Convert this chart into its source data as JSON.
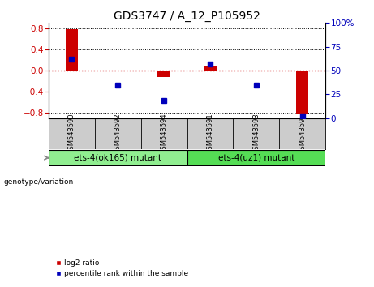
{
  "title": "GDS3747 / A_12_P105952",
  "samples": [
    "GSM543590",
    "GSM543592",
    "GSM543594",
    "GSM543591",
    "GSM543593",
    "GSM543595"
  ],
  "log2_ratio": [
    0.78,
    -0.02,
    -0.13,
    0.08,
    -0.02,
    -0.82
  ],
  "percentile_rank": [
    62,
    35,
    18,
    57,
    35,
    2
  ],
  "groups": [
    {
      "label": "ets-4(ok165) mutant",
      "samples_idx": [
        0,
        1,
        2
      ],
      "color": "#90ee90"
    },
    {
      "label": "ets-4(uz1) mutant",
      "samples_idx": [
        3,
        4,
        5
      ],
      "color": "#55dd55"
    }
  ],
  "ylim_left": [
    -0.9,
    0.9
  ],
  "ylim_right": [
    0,
    100
  ],
  "yticks_left": [
    -0.8,
    -0.4,
    0.0,
    0.4,
    0.8
  ],
  "yticks_right": [
    0,
    25,
    50,
    75,
    100
  ],
  "bar_color_red": "#cc0000",
  "bar_color_blue": "#0000bb",
  "dotted_line_color": "#000000",
  "zero_line_color": "#cc0000",
  "bg_color_plot": "#ffffff",
  "bg_color_samples": "#cccccc",
  "bar_width": 0.5,
  "xlim": [
    -0.5,
    5.5
  ]
}
